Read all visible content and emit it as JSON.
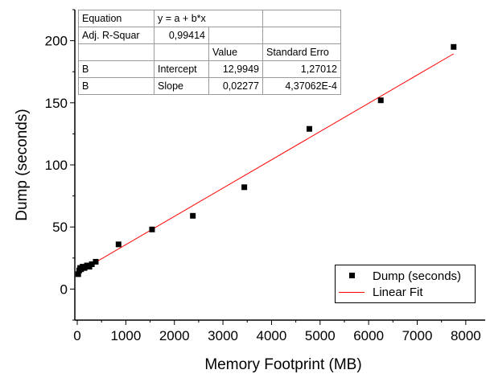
{
  "chart_data": {
    "type": "scatter",
    "xlabel": "Memory Footprint (MB)",
    "ylabel": "Dump (seconds)",
    "xlim": [
      -50,
      8400
    ],
    "ylim": [
      -25,
      225
    ],
    "x_ticks": [
      0,
      1000,
      2000,
      3000,
      4000,
      5000,
      6000,
      7000,
      8000
    ],
    "y_ticks": [
      0,
      50,
      100,
      150,
      200
    ],
    "x_tick_labels": [
      "0",
      "1000",
      "2000",
      "3000",
      "4000",
      "5000",
      "6000",
      "7000",
      "8000"
    ],
    "y_tick_labels": [
      "0",
      "50",
      "100",
      "150",
      "200"
    ],
    "series": [
      {
        "name": "Dump (seconds)",
        "kind": "scatter",
        "marker": "square",
        "color": "#000000",
        "x": [
          20,
          40,
          60,
          80,
          110,
          150,
          200,
          250,
          300,
          380,
          850,
          1540,
          2380,
          3440,
          4780,
          6250,
          7750
        ],
        "y": [
          12,
          15,
          17,
          16,
          18,
          17,
          19,
          18,
          20,
          22,
          36,
          48,
          59,
          82,
          129,
          152,
          195
        ]
      },
      {
        "name": "Linear Fit",
        "kind": "line",
        "color": "#ff0000",
        "x": [
          0,
          7750
        ],
        "y": [
          12.9949,
          189.46
        ]
      }
    ],
    "legend": {
      "position": "bottom-right",
      "entries": [
        "Dump (seconds)",
        "Linear Fit"
      ]
    },
    "fit_table": {
      "equation_label": "Equation",
      "equation_value": "y = a + b*x",
      "adj_r_label": "Adj. R-Squar",
      "adj_r_value": "0,99414",
      "value_header": "Value",
      "stderr_header": "Standard Erro",
      "rows": [
        {
          "param": "B",
          "name": "Intercept",
          "value": "12,9949",
          "stderr": "1,27012"
        },
        {
          "param": "B",
          "name": "Slope",
          "value": "0,02277",
          "stderr": "4,37062E-4"
        }
      ]
    },
    "grid": false
  }
}
